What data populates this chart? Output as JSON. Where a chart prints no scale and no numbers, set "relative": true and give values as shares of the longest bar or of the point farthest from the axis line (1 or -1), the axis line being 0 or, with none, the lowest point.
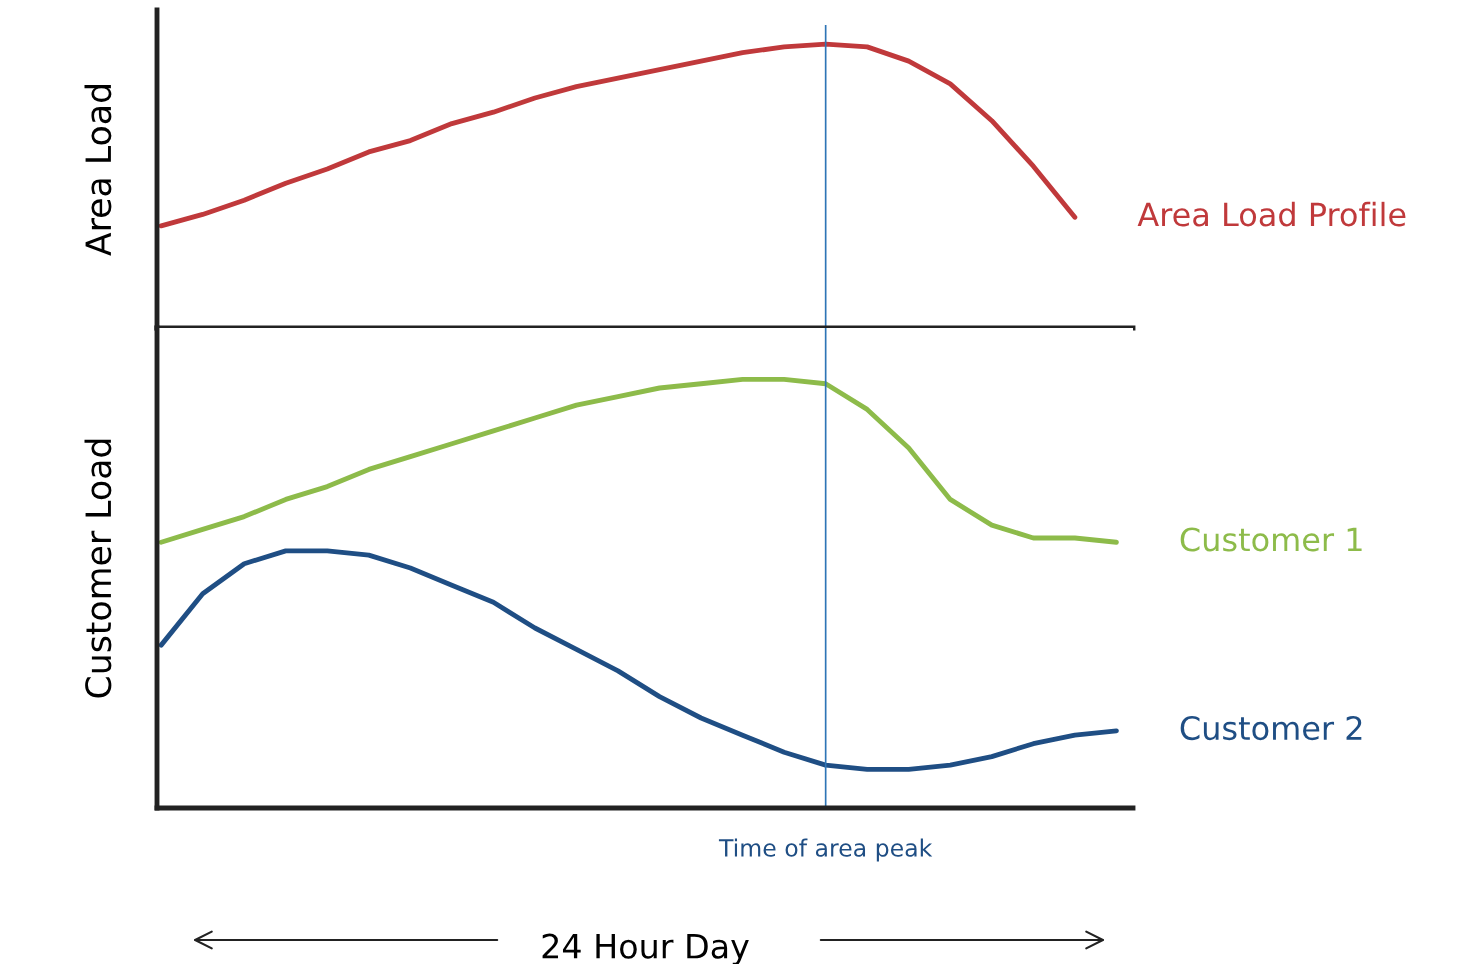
{
  "chart_data": [
    {
      "type": "line",
      "relative": true,
      "ylabel": "Area Load",
      "tick_labels": false,
      "grid": false,
      "legend": false,
      "marker": "none",
      "line_style": "solid",
      "categories": [
        null,
        null,
        null,
        null,
        null,
        null,
        null,
        null,
        null,
        null,
        null,
        null,
        null,
        null,
        null,
        null,
        null,
        null,
        null,
        null,
        null,
        null,
        null,
        null
      ],
      "series": [
        {
          "name": "Area Load Profile",
          "color": "#c0393b",
          "values": [
            0.36,
            0.4,
            0.45,
            0.51,
            0.56,
            0.62,
            0.66,
            0.72,
            0.76,
            0.81,
            0.85,
            0.88,
            0.91,
            0.94,
            0.97,
            0.99,
            1.0,
            0.99,
            0.94,
            0.86,
            0.73,
            0.57,
            0.39,
            null
          ]
        }
      ]
    },
    {
      "type": "line",
      "relative": true,
      "ylabel": "Customer Load",
      "xlabel": "24 Hour Day",
      "tick_labels": false,
      "grid": false,
      "legend": false,
      "marker": "none",
      "line_style": "solid",
      "categories": [
        null,
        null,
        null,
        null,
        null,
        null,
        null,
        null,
        null,
        null,
        null,
        null,
        null,
        null,
        null,
        null,
        null,
        null,
        null,
        null,
        null,
        null,
        null,
        null
      ],
      "series": [
        {
          "name": "Customer 1",
          "color": "#8dbb4a",
          "values": [
            0.62,
            0.65,
            0.68,
            0.72,
            0.75,
            0.79,
            0.82,
            0.85,
            0.88,
            0.91,
            0.94,
            0.96,
            0.98,
            0.99,
            1.0,
            1.0,
            0.99,
            0.93,
            0.84,
            0.72,
            0.66,
            0.63,
            0.63,
            0.62
          ]
        },
        {
          "name": "Customer 2",
          "color": "#1f4e84",
          "values": [
            0.38,
            0.5,
            0.57,
            0.6,
            0.6,
            0.59,
            0.56,
            0.52,
            0.48,
            0.42,
            0.37,
            0.32,
            0.26,
            0.21,
            0.17,
            0.13,
            0.1,
            0.09,
            0.09,
            0.1,
            0.12,
            0.15,
            0.17,
            0.18
          ]
        }
      ],
      "annotations": [
        "Time of area peak"
      ]
    }
  ]
}
